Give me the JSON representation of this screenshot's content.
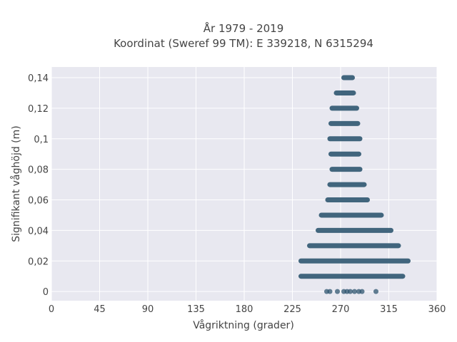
{
  "chart_data": {
    "type": "scatter",
    "title": "År 1979 - 2019",
    "subtitle": "Koordinat (Sweref 99 TM): E 339218, N 6315294",
    "xlabel": "Vågriktning (grader)",
    "ylabel": "Signifikant våghöjd (m)",
    "xlim": [
      0,
      360
    ],
    "ylim": [
      -0.006,
      0.147
    ],
    "xticks": [
      0,
      45,
      90,
      135,
      180,
      225,
      270,
      315,
      360
    ],
    "xtick_labels": [
      "0",
      "45",
      "90",
      "135",
      "180",
      "225",
      "270",
      "315",
      "360"
    ],
    "yticks": [
      0,
      0.02,
      0.04,
      0.06,
      0.08,
      0.1,
      0.12,
      0.14
    ],
    "ytick_labels": [
      "0",
      "0,02",
      "0,04",
      "0,06",
      "0,08",
      "0,1",
      "0,12",
      "0,14"
    ],
    "grid": true,
    "background": "#e8e8f0",
    "marker_color": "#2f5670",
    "rows": [
      {
        "y": 0.14,
        "x_min": 273,
        "x_max": 281
      },
      {
        "y": 0.13,
        "x_min": 266,
        "x_max": 282
      },
      {
        "y": 0.12,
        "x_min": 262,
        "x_max": 285
      },
      {
        "y": 0.11,
        "x_min": 261,
        "x_max": 286
      },
      {
        "y": 0.1,
        "x_min": 260,
        "x_max": 288
      },
      {
        "y": 0.09,
        "x_min": 261,
        "x_max": 287
      },
      {
        "y": 0.08,
        "x_min": 262,
        "x_max": 288
      },
      {
        "y": 0.07,
        "x_min": 260,
        "x_max": 292
      },
      {
        "y": 0.06,
        "x_min": 258,
        "x_max": 295
      },
      {
        "y": 0.05,
        "x_min": 252,
        "x_max": 308
      },
      {
        "y": 0.04,
        "x_min": 249,
        "x_max": 317
      },
      {
        "y": 0.03,
        "x_min": 241,
        "x_max": 324
      },
      {
        "y": 0.02,
        "x_min": 233,
        "x_max": 333
      },
      {
        "y": 0.01,
        "x_min": 233,
        "x_max": 328
      }
    ],
    "zero_points": [
      257,
      260,
      267,
      273,
      276,
      279,
      283,
      287,
      290,
      303
    ]
  }
}
